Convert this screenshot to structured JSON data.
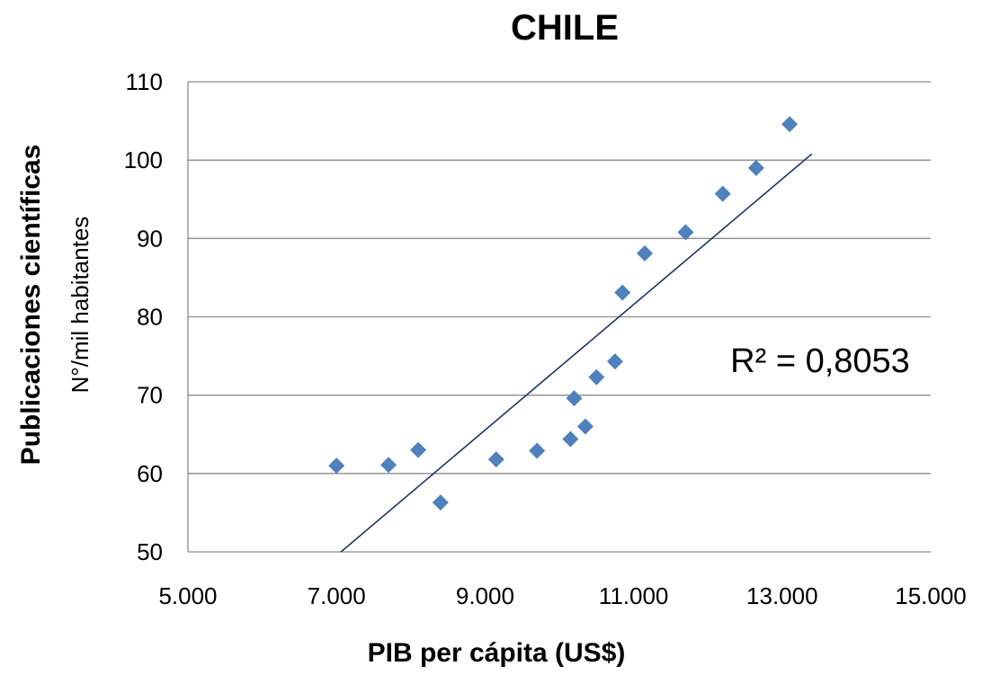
{
  "chart_data": {
    "type": "scatter",
    "title": "CHILE",
    "xlabel": "PIB per cápita (US$)",
    "ylabel": "Publicaciones científicas",
    "ylabel_sub": "N°/mil habitantes",
    "xlim": [
      5000,
      15000
    ],
    "ylim": [
      50,
      110
    ],
    "x_ticks": [
      5000,
      7000,
      9000,
      11000,
      13000,
      15000
    ],
    "x_tick_labels": [
      "5.000",
      "7.000",
      "9.000",
      "11.000",
      "13.000",
      "15.000"
    ],
    "y_ticks": [
      50,
      60,
      70,
      80,
      90,
      100,
      110
    ],
    "y_tick_labels": [
      "50",
      "60",
      "70",
      "80",
      "90",
      "100",
      "110"
    ],
    "grid": "horizontal",
    "marker_color": "#4f81bd",
    "trendline_color": "#1f3864",
    "series": [
      {
        "x": [
          7000,
          7700,
          8100,
          8400,
          9150,
          9700,
          10150,
          10200,
          10350,
          10500,
          10750,
          10850,
          11150,
          11700,
          12200,
          12650,
          13100
        ],
        "y": [
          61.0,
          61.1,
          63.0,
          56.3,
          61.8,
          62.9,
          64.4,
          69.6,
          66.0,
          72.3,
          74.3,
          83.1,
          88.1,
          90.8,
          95.7,
          99.0,
          104.6
        ]
      }
    ],
    "trendline": {
      "x": [
        7060,
        13400
      ],
      "y": [
        50,
        100.8
      ]
    },
    "annotation": "R² = 0,8053"
  }
}
